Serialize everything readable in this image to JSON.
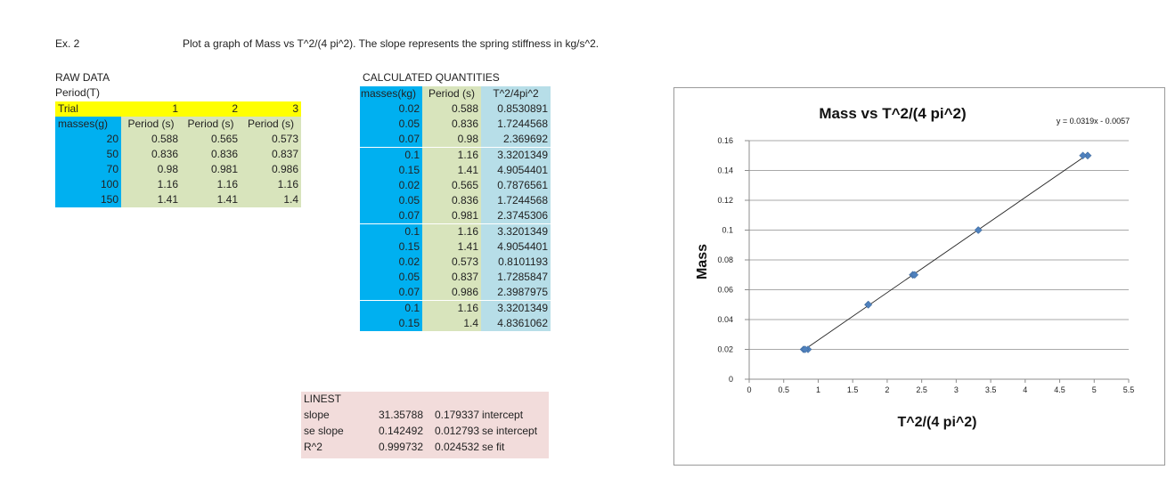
{
  "header": {
    "ex_label": "Ex. 2",
    "instruction": "Plot a graph of Mass vs T^2/(4 pi^2). The slope represents the spring stiffness in kg/s^2."
  },
  "raw": {
    "title": "RAW DATA",
    "subtitle": "Period(T)",
    "trial_label": "Trial",
    "trials": [
      "1",
      "2",
      "3"
    ],
    "masses_header": "masses(g)",
    "period_header": "Period (s)",
    "rows": [
      {
        "mass": "20",
        "p": [
          "0.588",
          "0.565",
          "0.573"
        ]
      },
      {
        "mass": "50",
        "p": [
          "0.836",
          "0.836",
          "0.837"
        ]
      },
      {
        "mass": "70",
        "p": [
          "0.98",
          "0.981",
          "0.986"
        ]
      },
      {
        "mass": "100",
        "p": [
          "1.16",
          "1.16",
          "1.16"
        ]
      },
      {
        "mass": "150",
        "p": [
          "1.41",
          "1.41",
          "1.4"
        ]
      }
    ],
    "colors": {
      "yellow": "#ffff00",
      "blue": "#00b0f0",
      "green": "#d8e4bc"
    }
  },
  "calc": {
    "title": "CALCULATED QUANTITIES",
    "headers": [
      "masses(kg)",
      "Period (s)",
      "T^2/4pi^2"
    ],
    "rows": [
      [
        "0.02",
        "0.588",
        "0.8530891"
      ],
      [
        "0.05",
        "0.836",
        "1.7244568"
      ],
      [
        "0.07",
        "0.98",
        "2.369692"
      ],
      [
        "0.1",
        "1.16",
        "3.3201349"
      ],
      [
        "0.15",
        "1.41",
        "4.9054401"
      ],
      [
        "0.02",
        "0.565",
        "0.7876561"
      ],
      [
        "0.05",
        "0.836",
        "1.7244568"
      ],
      [
        "0.07",
        "0.981",
        "2.3745306"
      ],
      [
        "0.1",
        "1.16",
        "3.3201349"
      ],
      [
        "0.15",
        "1.41",
        "4.9054401"
      ],
      [
        "0.02",
        "0.573",
        "0.8101193"
      ],
      [
        "0.05",
        "0.837",
        "1.7285847"
      ],
      [
        "0.07",
        "0.986",
        "2.3987975"
      ],
      [
        "0.1",
        "1.16",
        "3.3201349"
      ],
      [
        "0.15",
        "1.4",
        "4.8361062"
      ]
    ],
    "colors": {
      "blue": "#00b0f0",
      "green": "#d8e4bc",
      "lightblue": "#b7dee8"
    }
  },
  "linest": {
    "title": "LINEST",
    "rows": [
      [
        "slope",
        "31.35788",
        "0.179337",
        "intercept"
      ],
      [
        "se slope",
        "0.142492",
        "0.012793",
        "se intercept"
      ],
      [
        "R^2",
        "0.999732",
        "0.024532",
        "se fit"
      ]
    ],
    "color": "#f2dcdb"
  },
  "chart_data": {
    "type": "scatter",
    "title": "Mass vs T^2/(4 pi^2)",
    "xlabel": "T^2/(4 pi^2)",
    "ylabel": "Mass",
    "equation": "y = 0.0319x - 0.0057",
    "x_ticks": [
      "0",
      "0.5",
      "1",
      "1.5",
      "2",
      "2.5",
      "3",
      "3.5",
      "4",
      "4.5",
      "5",
      "5.5"
    ],
    "y_ticks": [
      "0",
      "0.02",
      "0.04",
      "0.06",
      "0.08",
      "0.1",
      "0.12",
      "0.14",
      "0.16"
    ],
    "xlim": [
      0,
      5.5
    ],
    "ylim": [
      0,
      0.16
    ],
    "grid": "horizontal",
    "trendline": {
      "slope": 0.0319,
      "intercept": -0.0057,
      "x_range": [
        0.79,
        4.91
      ]
    },
    "marker_color": "#4f81bd",
    "series": [
      {
        "x": [
          0.8530891,
          1.7244568,
          2.369692,
          3.3201349,
          4.9054401,
          0.7876561,
          1.7244568,
          2.3745306,
          3.3201349,
          4.9054401,
          0.8101193,
          1.7285847,
          2.3987975,
          3.3201349,
          4.8361062
        ],
        "y": [
          0.02,
          0.05,
          0.07,
          0.1,
          0.15,
          0.02,
          0.05,
          0.07,
          0.1,
          0.15,
          0.02,
          0.05,
          0.07,
          0.1,
          0.15
        ]
      }
    ]
  }
}
